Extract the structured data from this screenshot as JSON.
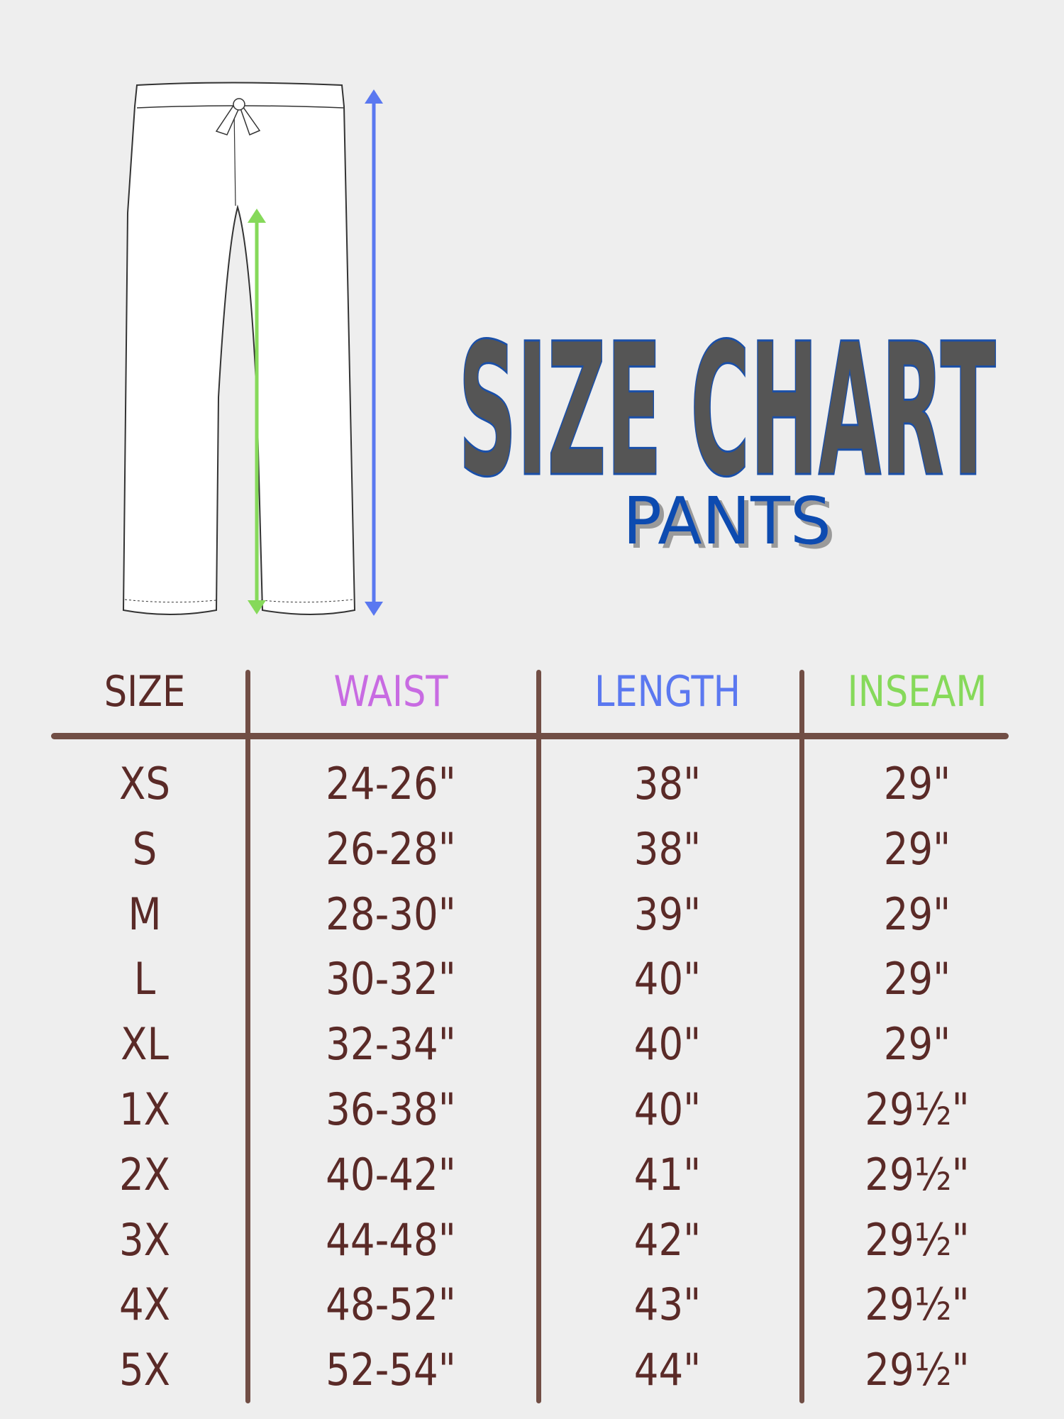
{
  "title": "SIZE CHART",
  "subtitle": "PANTS",
  "colors": {
    "background": "#eeeeee",
    "title_fill": "#555555",
    "title_outline": "#1a4fa8",
    "subtitle": "#0d4cb0",
    "text": "#5a2a27",
    "lines": "#714e45",
    "waist": "#c86be2",
    "length": "#5b78f0",
    "inseam": "#86d95a"
  },
  "illustration": {
    "icon": "pants-outline-icon",
    "length_arrow": "blue",
    "inseam_arrow": "green"
  },
  "chart_data": {
    "type": "table",
    "columns": [
      "SIZE",
      "WAIST",
      "LENGTH",
      "INSEAM"
    ],
    "rows": [
      [
        "XS",
        "24-26\"",
        "38\"",
        "29\""
      ],
      [
        "S",
        "26-28\"",
        "38\"",
        "29\""
      ],
      [
        "M",
        "28-30\"",
        "39\"",
        "29\""
      ],
      [
        "L",
        "30-32\"",
        "40\"",
        "29\""
      ],
      [
        "XL",
        "32-34\"",
        "40\"",
        "29\""
      ],
      [
        "1X",
        "36-38\"",
        "40\"",
        "29½\""
      ],
      [
        "2X",
        "40-42\"",
        "41\"",
        "29½\""
      ],
      [
        "3X",
        "44-48\"",
        "42\"",
        "29½\""
      ],
      [
        "4X",
        "48-52\"",
        "43\"",
        "29½\""
      ],
      [
        "5X",
        "52-54\"",
        "44\"",
        "29½\""
      ]
    ]
  }
}
